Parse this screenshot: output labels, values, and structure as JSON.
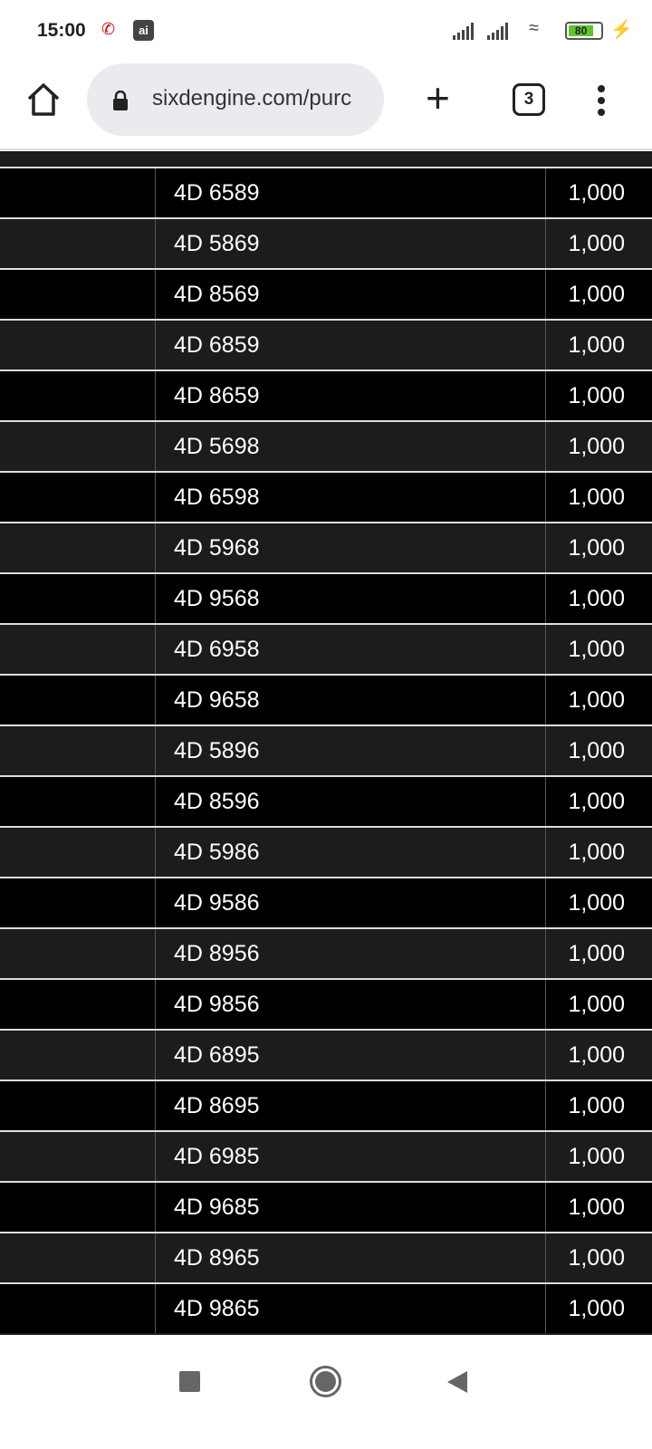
{
  "status_bar": {
    "time": "15:00",
    "battery": "80",
    "battery_level_percent": 80,
    "icons": [
      "missed-call-icon",
      "app-notification-icon",
      "signal-icon",
      "signal-icon",
      "wifi-icon",
      "battery-icon",
      "charging-icon"
    ]
  },
  "browser": {
    "url": "sixdengine.com/purc",
    "tab_count": "3",
    "icons": [
      "home-icon",
      "lock-icon",
      "new-tab-icon",
      "tab-switcher-icon",
      "more-menu-icon"
    ]
  },
  "table": {
    "rows": [
      {
        "number": "4D 6589",
        "amount": "1,000"
      },
      {
        "number": "4D 5869",
        "amount": "1,000"
      },
      {
        "number": "4D 8569",
        "amount": "1,000"
      },
      {
        "number": "4D 6859",
        "amount": "1,000"
      },
      {
        "number": "4D 8659",
        "amount": "1,000"
      },
      {
        "number": "4D 5698",
        "amount": "1,000"
      },
      {
        "number": "4D 6598",
        "amount": "1,000"
      },
      {
        "number": "4D 5968",
        "amount": "1,000"
      },
      {
        "number": "4D 9568",
        "amount": "1,000"
      },
      {
        "number": "4D 6958",
        "amount": "1,000"
      },
      {
        "number": "4D 9658",
        "amount": "1,000"
      },
      {
        "number": "4D 5896",
        "amount": "1,000"
      },
      {
        "number": "4D 8596",
        "amount": "1,000"
      },
      {
        "number": "4D 5986",
        "amount": "1,000"
      },
      {
        "number": "4D 9586",
        "amount": "1,000"
      },
      {
        "number": "4D 8956",
        "amount": "1,000"
      },
      {
        "number": "4D 9856",
        "amount": "1,000"
      },
      {
        "number": "4D 6895",
        "amount": "1,000"
      },
      {
        "number": "4D 8695",
        "amount": "1,000"
      },
      {
        "number": "4D 6985",
        "amount": "1,000"
      },
      {
        "number": "4D 9685",
        "amount": "1,000"
      },
      {
        "number": "4D 8965",
        "amount": "1,000"
      },
      {
        "number": "4D 9865",
        "amount": "1,000"
      }
    ]
  },
  "colors": {
    "row_dark": "#000000",
    "row_alt": "#1c1c1c",
    "divider": "#dddddd"
  }
}
